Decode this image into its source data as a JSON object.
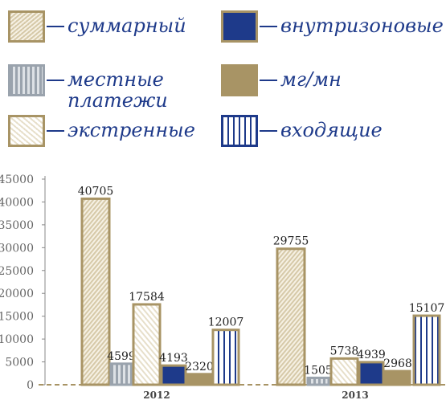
{
  "colors": {
    "gold": "#a89465",
    "gold_light": "#d6c9a8",
    "navy": "#1e3a8a",
    "gray": "#9aa3ad",
    "axis_text": "#666666",
    "year_text": "#444444"
  },
  "legend": [
    {
      "label": "суммарный",
      "pattern": "gold-hatched"
    },
    {
      "label": "внутризоновые",
      "pattern": "navy-solid"
    },
    {
      "label": "местные\nплатежи",
      "pattern": "gray-lines"
    },
    {
      "label": "мг/мн",
      "pattern": "gold-solid"
    },
    {
      "label": "экстренные",
      "pattern": "white-hatched"
    },
    {
      "label": "входящие",
      "pattern": "vertical-lines"
    }
  ],
  "chart_data": {
    "type": "bar",
    "categories": [
      "2012",
      "2013"
    ],
    "series": [
      {
        "name": "суммарный",
        "values": [
          40705,
          29755
        ]
      },
      {
        "name": "местные платежи",
        "values": [
          4599,
          1505
        ]
      },
      {
        "name": "экстренные",
        "values": [
          17584,
          5738
        ]
      },
      {
        "name": "внутризоновые",
        "values": [
          4193,
          4939
        ]
      },
      {
        "name": "мг/мн",
        "values": [
          2320,
          2968
        ]
      },
      {
        "name": "входящие",
        "values": [
          12007,
          15107
        ]
      }
    ],
    "ylim": [
      0,
      45000
    ],
    "yticks": [
      "0",
      "5000",
      "10000",
      "15000",
      "20000",
      "25000",
      "30000",
      "35000",
      "40000",
      "45000"
    ],
    "data_labels": [
      [
        "40705",
        "4599",
        "17584",
        "4193",
        "2320",
        "12007"
      ],
      [
        "29755",
        "1505",
        "5738",
        "4939",
        "2968",
        "15107"
      ]
    ],
    "grid": false,
    "legend_placement": "top"
  }
}
